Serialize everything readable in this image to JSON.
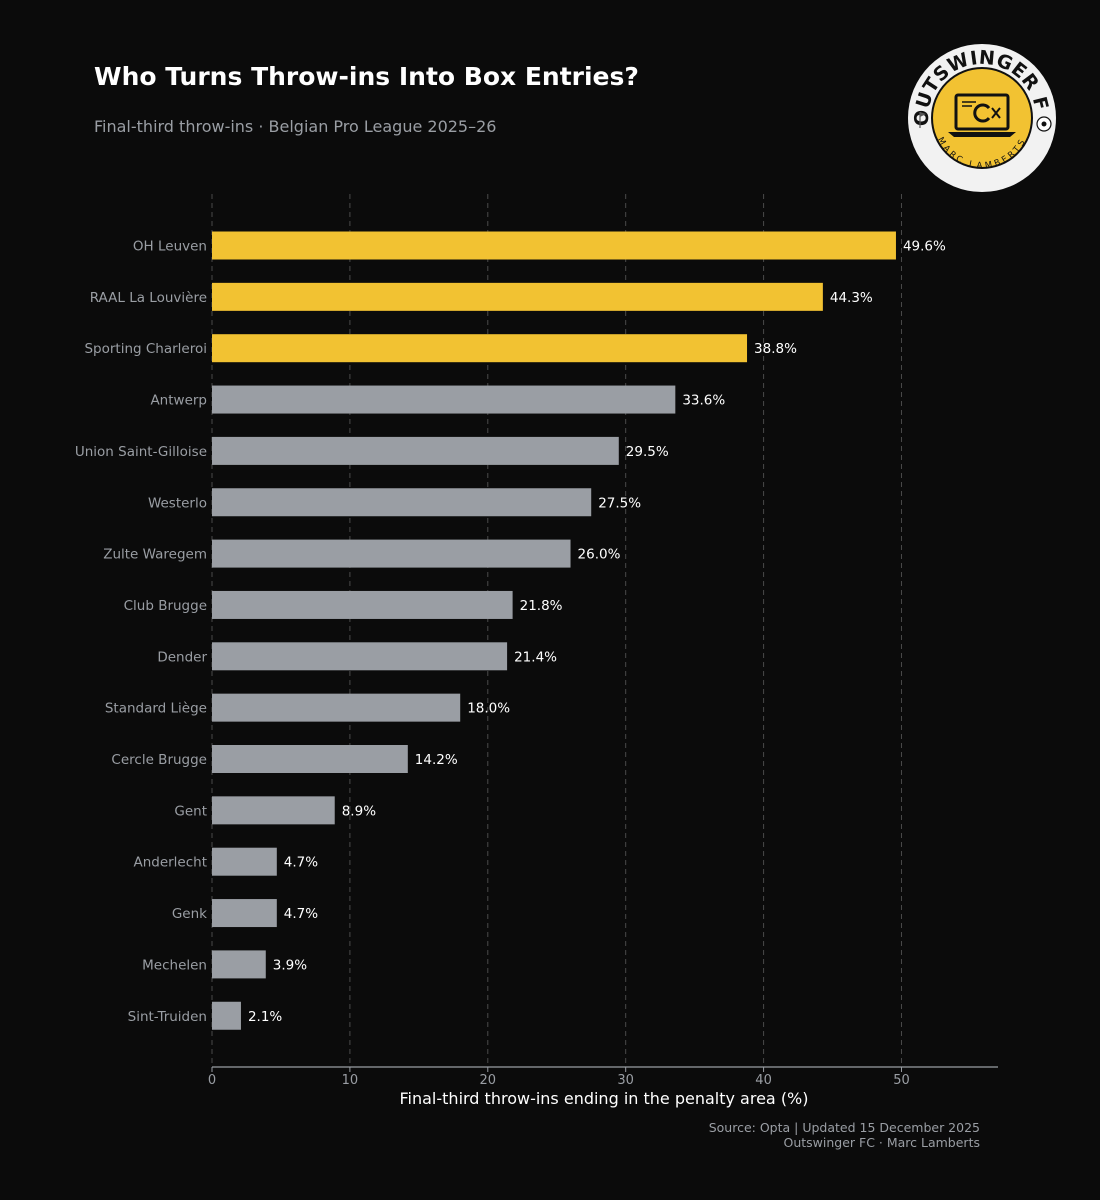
{
  "header": {
    "title": "Who Turns Throw-ins Into Box Entries?",
    "subtitle": "Final-third throw-ins · Belgian Pro League 2025–26"
  },
  "footer": {
    "source_line": "Source: Opta | Updated 15 December 2025",
    "credit_line": "Outswinger FC · Marc Lamberts"
  },
  "logo": {
    "top_text": "OUTSWINGER FC",
    "bottom_text": "MARC LAMBERTS"
  },
  "colors": {
    "background": "#0b0b0b",
    "highlight": "#f2c232",
    "bar": "#9a9ea4",
    "grid": "#4a4a4a",
    "axis": "#9a9ea4",
    "text": "#ffffff"
  },
  "chart_data": {
    "type": "bar",
    "orientation": "horizontal",
    "title": "Who Turns Throw-ins Into Box Entries?",
    "subtitle": "Final-third throw-ins · Belgian Pro League 2025–26",
    "xlabel": "Final-third throw-ins ending in the penalty area (%)",
    "ylabel": "",
    "xlim": [
      0,
      57
    ],
    "xticks": [
      0,
      10,
      20,
      30,
      40,
      50
    ],
    "grid": "vertical dashed",
    "categories": [
      "OH Leuven",
      "RAAL La Louvière",
      "Sporting Charleroi",
      "Antwerp",
      "Union Saint-Gilloise",
      "Westerlo",
      "Zulte Waregem",
      "Club Brugge",
      "Dender",
      "Standard Liège",
      "Cercle Brugge",
      "Gent",
      "Anderlecht",
      "Genk",
      "Mechelen",
      "Sint-Truiden"
    ],
    "values": [
      49.6,
      44.3,
      38.8,
      33.6,
      29.5,
      27.5,
      26.0,
      21.8,
      21.4,
      18.0,
      14.2,
      8.9,
      4.7,
      4.7,
      3.9,
      2.1
    ],
    "labels": [
      "49.6%",
      "44.3%",
      "38.8%",
      "33.6%",
      "29.5%",
      "27.5%",
      "26.0%",
      "21.8%",
      "21.4%",
      "18.0%",
      "14.2%",
      "8.9%",
      "4.7%",
      "4.7%",
      "3.9%",
      "2.1%"
    ],
    "highlighted_top": 3
  }
}
